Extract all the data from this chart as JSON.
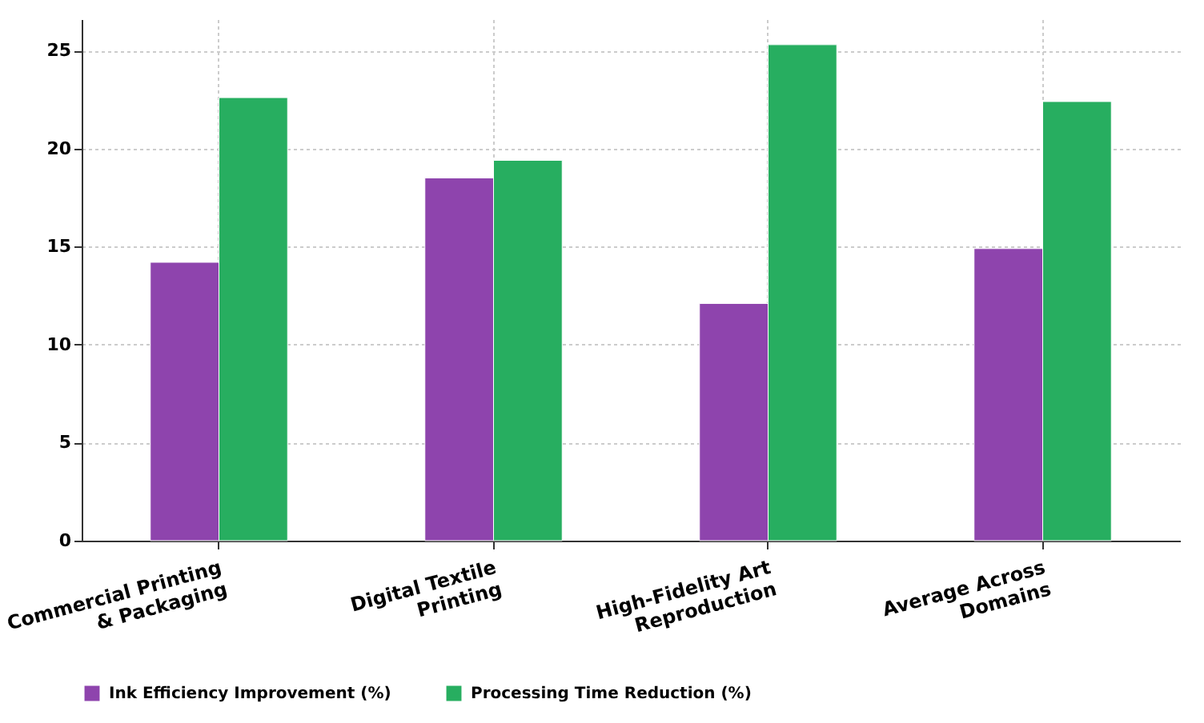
{
  "chart_data": {
    "type": "bar",
    "categories": [
      "Commercial Printing & Packaging",
      "Digital Textile Printing",
      "High-Fidelity Art Reproduction",
      "Average Across Domains"
    ],
    "series": [
      {
        "name": "Ink Efficiency Improvement (%)",
        "color": "#8e44ad",
        "values": [
          14.2,
          18.5,
          12.1,
          14.9
        ]
      },
      {
        "name": "Processing Time Reduction (%)",
        "color": "#27ae60",
        "values": [
          22.6,
          19.4,
          25.3,
          22.4
        ]
      }
    ],
    "ylim": [
      0,
      26.6
    ],
    "yticks": [
      0,
      5,
      10,
      15,
      20,
      25
    ],
    "grid": true,
    "legend": "bottom"
  }
}
